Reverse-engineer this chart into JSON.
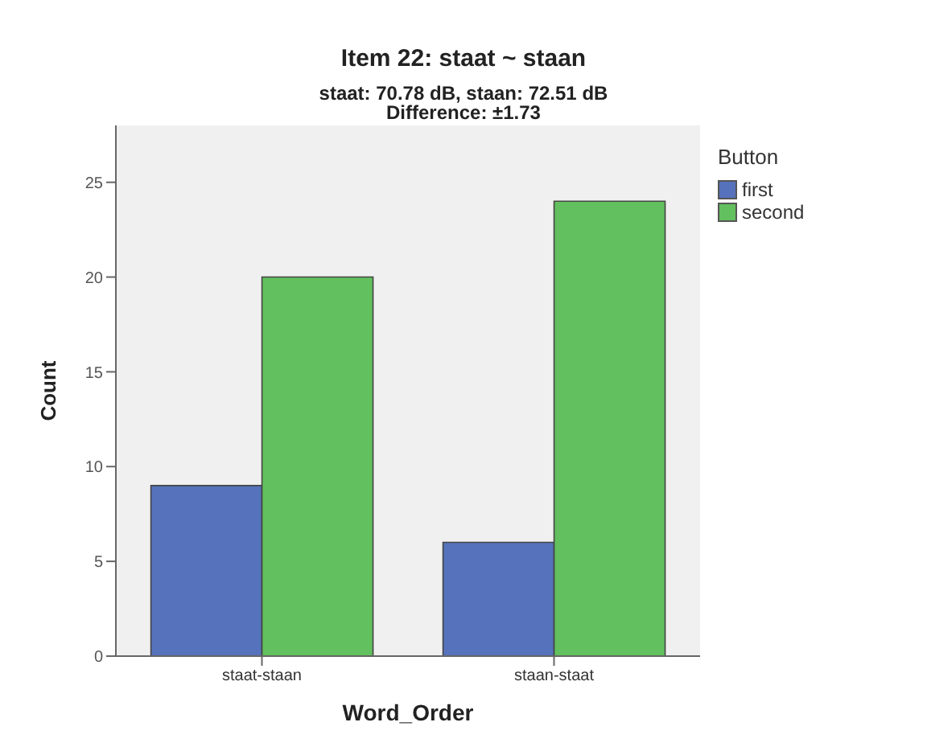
{
  "chart_data": {
    "type": "bar",
    "title": "Item 22: staat ~ staan",
    "subtitle": "staat: 70.78 dB, staan: 72.51 dB\nDifference: ±1.73",
    "xlabel": "Word_Order",
    "ylabel": "Count",
    "legend_title": "Button",
    "categories": [
      "staat-staan",
      "staan-staat"
    ],
    "series": [
      {
        "name": "first",
        "color": "#5672bc",
        "values": [
          9,
          6
        ]
      },
      {
        "name": "second",
        "color": "#62c05e",
        "values": [
          20,
          24
        ]
      }
    ],
    "ylim": [
      0,
      28
    ],
    "yticks": [
      0,
      5,
      10,
      15,
      20,
      25
    ],
    "grid": false,
    "legend": "top right"
  }
}
